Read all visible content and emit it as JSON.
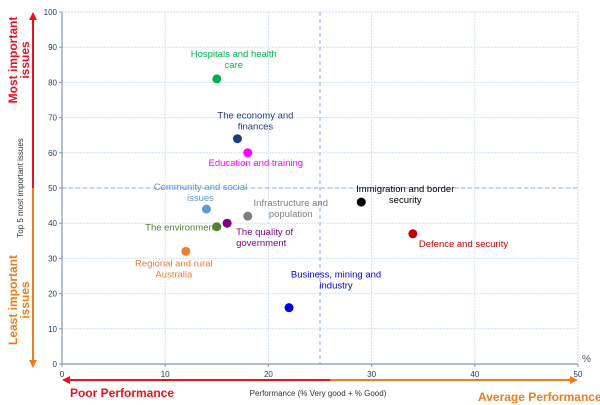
{
  "chart_data": {
    "type": "scatter",
    "title": "",
    "xlabel": "Performance (% Very good + % Good)",
    "ylabel": "Top 5 most important issues",
    "x_unit_label": "%",
    "xlim": [
      0,
      50
    ],
    "ylim": [
      0,
      100
    ],
    "x_ticks": [
      0,
      10,
      20,
      30,
      40,
      50
    ],
    "y_ticks": [
      0,
      10,
      20,
      30,
      40,
      50,
      60,
      70,
      80,
      90,
      100
    ],
    "grid": true,
    "reference_lines": {
      "x": 25,
      "y": 50
    },
    "points": [
      {
        "label": "Hospitals and health care",
        "label_lines": [
          "Hospitals and health",
          "care"
        ],
        "x": 15,
        "y": 81,
        "color": "#00b050"
      },
      {
        "label": "The economy and finances",
        "label_lines": [
          "The economy and",
          "finances"
        ],
        "x": 17,
        "y": 64,
        "color": "#1f3b7a"
      },
      {
        "label": "Education and training",
        "label_lines": [
          "Education and training"
        ],
        "x": 18,
        "y": 60,
        "color": "#ff00ff"
      },
      {
        "label": "Community and social issues",
        "label_lines": [
          "Community and social",
          "issues"
        ],
        "x": 14,
        "y": 44,
        "color": "#5b9bd5"
      },
      {
        "label": "Infrastructure and population",
        "label_lines": [
          "Infrastructure and",
          "population"
        ],
        "x": 18,
        "y": 42,
        "color": "#808080"
      },
      {
        "label": "Immigration and border security",
        "label_lines": [
          "Immigration and border",
          "security"
        ],
        "x": 29,
        "y": 46,
        "color": "#000000"
      },
      {
        "label": "The environment",
        "label_lines": [
          "The environment"
        ],
        "x": 15,
        "y": 39,
        "color": "#548235"
      },
      {
        "label": "The quality of government",
        "label_lines": [
          "The quality of",
          "government"
        ],
        "x": 16,
        "y": 40,
        "color": "#7b007b"
      },
      {
        "label": "Defence and security",
        "label_lines": [
          "Defence and security"
        ],
        "x": 34,
        "y": 37,
        "color": "#c00000"
      },
      {
        "label": "Regional and rural Australia",
        "label_lines": [
          "Regional and rural",
          "Australia"
        ],
        "x": 12,
        "y": 32,
        "color": "#ed7d31"
      },
      {
        "label": "Business, mining and industry",
        "label_lines": [
          "Business, mining and",
          "industry"
        ],
        "x": 22,
        "y": 16,
        "color": "#0000e0"
      }
    ],
    "annotations": {
      "most_important": "Most important issues",
      "least_important": "Least important issues",
      "poor_performance": "Poor Performance",
      "average_performance": "Average Performance"
    }
  },
  "colors": {
    "red": "#e8121e",
    "orange": "#ed7d1f",
    "grid": "#cfe2f3",
    "axis": "#8497b0",
    "ref_line": "#8faadc"
  }
}
